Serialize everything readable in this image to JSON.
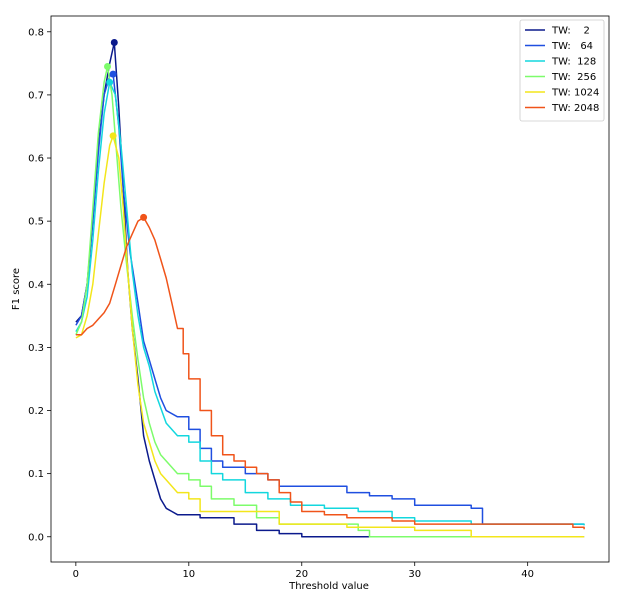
{
  "chart_data": {
    "type": "line",
    "title": "",
    "xlabel": "Threshold value",
    "ylabel": "F1 score",
    "xlim": [
      -2.2,
      47.2
    ],
    "ylim": [
      -0.04,
      0.825
    ],
    "xticks": [
      0,
      10,
      20,
      30,
      40
    ],
    "yticks": [
      0.0,
      0.1,
      0.2,
      0.3,
      0.4,
      0.5,
      0.6,
      0.7,
      0.8
    ],
    "xtick_labels": [
      "0",
      "10",
      "20",
      "30",
      "40"
    ],
    "ytick_labels": [
      "0.0",
      "0.1",
      "0.2",
      "0.3",
      "0.4",
      "0.5",
      "0.6",
      "0.7",
      "0.8"
    ],
    "grid": false,
    "legend_position": "top-right",
    "series": [
      {
        "name": "TW:    2",
        "color": "#0b1a8c",
        "peak": [
          3.4,
          0.783
        ],
        "x": [
          0,
          0.5,
          1.0,
          1.5,
          2.0,
          2.5,
          3.0,
          3.4,
          3.8,
          4.2,
          4.6,
          5.0,
          5.5,
          6.0,
          6.5,
          7.0,
          7.5,
          8.0,
          8.5,
          9.0,
          10,
          11,
          12,
          14,
          16,
          18,
          20,
          25,
          30,
          35,
          40,
          45
        ],
        "y": [
          0.34,
          0.35,
          0.4,
          0.5,
          0.62,
          0.7,
          0.75,
          0.783,
          0.68,
          0.55,
          0.42,
          0.33,
          0.25,
          0.16,
          0.12,
          0.09,
          0.06,
          0.045,
          0.04,
          0.035,
          0.035,
          0.03,
          0.03,
          0.02,
          0.01,
          0.005,
          0.0,
          0.0,
          0.0,
          0.0,
          0.0,
          0.0
        ]
      },
      {
        "name": "TW:   64",
        "color": "#1f4fe0",
        "peak": [
          3.3,
          0.733
        ],
        "x": [
          0,
          0.5,
          1.0,
          1.5,
          2.0,
          2.5,
          3.0,
          3.3,
          3.8,
          4.2,
          4.8,
          5.5,
          6.0,
          6.5,
          7.0,
          7.5,
          8.0,
          9.0,
          10,
          11,
          12,
          13,
          14,
          15,
          17,
          18,
          22,
          24,
          26,
          28,
          30,
          35,
          36,
          40,
          45
        ],
        "y": [
          0.335,
          0.35,
          0.4,
          0.5,
          0.61,
          0.7,
          0.73,
          0.733,
          0.65,
          0.55,
          0.45,
          0.37,
          0.31,
          0.28,
          0.25,
          0.22,
          0.2,
          0.19,
          0.17,
          0.14,
          0.12,
          0.11,
          0.11,
          0.1,
          0.09,
          0.08,
          0.08,
          0.07,
          0.065,
          0.06,
          0.05,
          0.045,
          0.02,
          0.02,
          0.02
        ]
      },
      {
        "name": "TW:  128",
        "color": "#13d7de",
        "peak": [
          3.0,
          0.72
        ],
        "x": [
          0,
          0.5,
          1.0,
          1.5,
          2.0,
          2.5,
          3.0,
          3.5,
          4.0,
          4.5,
          5.0,
          5.5,
          6.0,
          6.5,
          7.0,
          8.0,
          9.0,
          10,
          11,
          12,
          13,
          15,
          17,
          19,
          22,
          25,
          28,
          30,
          35,
          40,
          45
        ],
        "y": [
          0.325,
          0.34,
          0.38,
          0.47,
          0.58,
          0.67,
          0.72,
          0.7,
          0.62,
          0.52,
          0.42,
          0.35,
          0.3,
          0.27,
          0.23,
          0.18,
          0.16,
          0.15,
          0.12,
          0.1,
          0.09,
          0.07,
          0.06,
          0.05,
          0.045,
          0.04,
          0.03,
          0.025,
          0.02,
          0.02,
          0.018
        ]
      },
      {
        "name": "TW:  256",
        "color": "#7dfc6b",
        "peak": [
          2.8,
          0.745
        ],
        "x": [
          0,
          0.5,
          1.0,
          1.5,
          2.0,
          2.5,
          2.8,
          3.2,
          3.6,
          4.0,
          4.5,
          5.0,
          5.5,
          6.0,
          6.5,
          7.0,
          7.5,
          8.0,
          9.0,
          10,
          11,
          12,
          14,
          16,
          18,
          20,
          25,
          26,
          30,
          35,
          40,
          45
        ],
        "y": [
          0.32,
          0.34,
          0.4,
          0.52,
          0.64,
          0.72,
          0.745,
          0.7,
          0.61,
          0.52,
          0.43,
          0.35,
          0.28,
          0.22,
          0.18,
          0.15,
          0.13,
          0.12,
          0.1,
          0.09,
          0.08,
          0.06,
          0.05,
          0.03,
          0.02,
          0.02,
          0.01,
          0.0,
          0.0,
          0.0,
          0.0,
          0.0
        ]
      },
      {
        "name": "TW: 1024",
        "color": "#f3e61b",
        "peak": [
          3.3,
          0.635
        ],
        "x": [
          0,
          0.5,
          1.0,
          1.5,
          2.0,
          2.5,
          3.0,
          3.3,
          3.8,
          4.2,
          4.6,
          5.0,
          5.5,
          6.0,
          6.5,
          7.0,
          7.5,
          8.0,
          9.0,
          10,
          11,
          12,
          14,
          16,
          18,
          20,
          24,
          30,
          34,
          35,
          40,
          45
        ],
        "y": [
          0.315,
          0.32,
          0.35,
          0.4,
          0.48,
          0.56,
          0.62,
          0.635,
          0.6,
          0.52,
          0.42,
          0.33,
          0.24,
          0.18,
          0.15,
          0.12,
          0.1,
          0.09,
          0.07,
          0.06,
          0.04,
          0.04,
          0.04,
          0.04,
          0.02,
          0.02,
          0.015,
          0.01,
          0.01,
          0.0,
          0.0,
          0.0
        ]
      },
      {
        "name": "TW: 2048",
        "color": "#f0541a",
        "peak": [
          6.0,
          0.506
        ],
        "x": [
          0,
          0.5,
          1.0,
          1.5,
          2.0,
          2.5,
          3.0,
          3.5,
          4.0,
          4.5,
          5.0,
          5.5,
          6.0,
          6.5,
          7.0,
          7.5,
          8.0,
          8.5,
          9.0,
          9.5,
          10,
          11,
          12,
          13,
          14,
          15,
          16,
          17,
          18,
          19,
          20,
          22,
          24,
          26,
          28,
          30,
          32,
          36,
          40,
          44,
          45
        ],
        "y": [
          0.32,
          0.32,
          0.33,
          0.335,
          0.345,
          0.355,
          0.37,
          0.4,
          0.43,
          0.46,
          0.48,
          0.5,
          0.506,
          0.49,
          0.47,
          0.44,
          0.41,
          0.37,
          0.33,
          0.29,
          0.25,
          0.2,
          0.16,
          0.13,
          0.12,
          0.11,
          0.1,
          0.09,
          0.07,
          0.055,
          0.04,
          0.035,
          0.03,
          0.03,
          0.025,
          0.02,
          0.02,
          0.02,
          0.02,
          0.015,
          0.012
        ]
      }
    ]
  }
}
